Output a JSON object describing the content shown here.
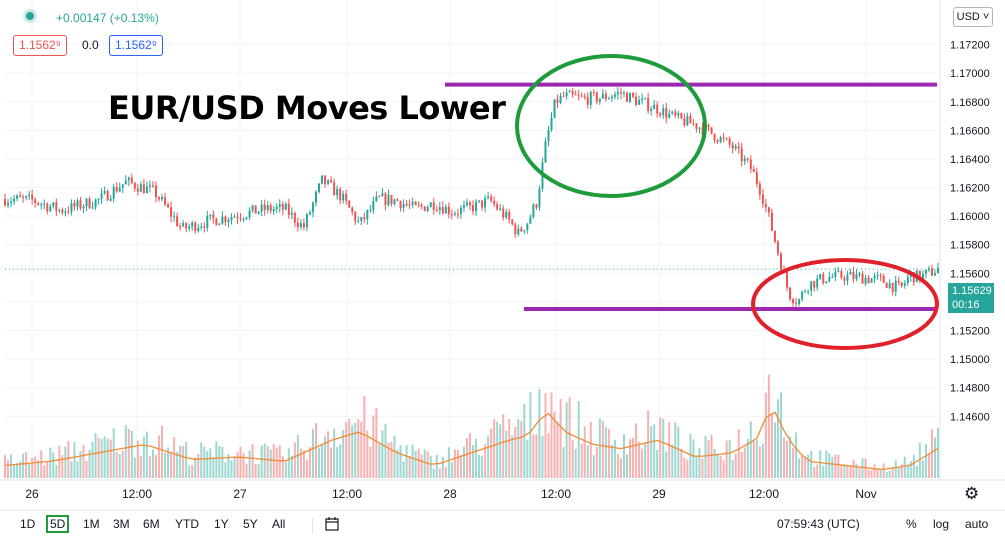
{
  "header": {
    "change": "+0.00147 (+0.13%)",
    "bid": "1.1562⁹",
    "spread": "0.0",
    "ask": "1.1562⁹"
  },
  "currency_button": "USD ˅",
  "annotation": "EUR/USD Moves Lower",
  "price_tag": {
    "price": "1.15629",
    "countdown": "00:16"
  },
  "bottom_bar": {
    "timeframes": [
      "1D",
      "5D",
      "1M",
      "3M",
      "6M",
      "YTD",
      "1Y",
      "5Y",
      "All"
    ],
    "active_timeframe": "5D",
    "clock": "07:59:43 (UTC)",
    "percent": "%",
    "log": "log",
    "auto": "auto",
    "settings_icon": "gear-icon",
    "compare_icon": "calendar-range-icon"
  },
  "colors": {
    "up": "#26a69a",
    "down": "#ef5350",
    "volume_ma": "#f28c36",
    "resistance_line": "#9c27b0",
    "green_circle": "#1e9c3c",
    "red_circle": "#e0202a"
  },
  "chart_data": {
    "type": "candlestick",
    "instrument": "EUR/USD",
    "ylim": [
      1.1435,
      1.174
    ],
    "y_ticks": [
      1.172,
      1.17,
      1.168,
      1.166,
      1.164,
      1.162,
      1.16,
      1.158,
      1.156,
      1.154,
      1.152,
      1.15,
      1.148,
      1.146
    ],
    "x_ticks": [
      "26",
      "12:00",
      "27",
      "12:00",
      "28",
      "12:00",
      "29",
      "12:00",
      "Nov"
    ],
    "current_price": 1.15629,
    "price_path": [
      [
        0,
        1.1612
      ],
      [
        3,
        1.1611
      ],
      [
        6,
        1.1604
      ],
      [
        10,
        1.1611
      ],
      [
        13,
        1.1624
      ],
      [
        16,
        1.1617
      ],
      [
        19,
        1.1591
      ],
      [
        22,
        1.1597
      ],
      [
        25,
        1.1601
      ],
      [
        28,
        1.1605
      ],
      [
        30,
        1.1605
      ],
      [
        32,
        1.1592
      ],
      [
        34,
        1.1625
      ],
      [
        36,
        1.1614
      ],
      [
        38,
        1.1594
      ],
      [
        40,
        1.1612
      ],
      [
        42,
        1.1611
      ],
      [
        44,
        1.1605
      ],
      [
        46,
        1.1609
      ],
      [
        48,
        1.1603
      ],
      [
        50,
        1.1606
      ],
      [
        52,
        1.1611
      ],
      [
        54,
        1.1597
      ],
      [
        55,
        1.1588
      ],
      [
        56,
        1.1596
      ],
      [
        57,
        1.161
      ],
      [
        58,
        1.1652
      ],
      [
        59,
        1.168
      ],
      [
        60,
        1.1684
      ],
      [
        62,
        1.1682
      ],
      [
        64,
        1.1683
      ],
      [
        66,
        1.1686
      ],
      [
        68,
        1.168
      ],
      [
        70,
        1.1675
      ],
      [
        72,
        1.1668
      ],
      [
        74,
        1.1664
      ],
      [
        76,
        1.1657
      ],
      [
        78,
        1.1648
      ],
      [
        80,
        1.1633
      ],
      [
        81,
        1.1618
      ],
      [
        82,
        1.1596
      ],
      [
        83,
        1.1571
      ],
      [
        84,
        1.1546
      ],
      [
        85,
        1.154
      ],
      [
        86,
        1.1552
      ],
      [
        88,
        1.1557
      ],
      [
        90,
        1.1558
      ],
      [
        92,
        1.1557
      ],
      [
        94,
        1.1555
      ],
      [
        96,
        1.1549
      ],
      [
        97,
        1.1559
      ],
      [
        98,
        1.1557
      ],
      [
        100,
        1.1563
      ]
    ],
    "volume_profile": [
      [
        0,
        0.15
      ],
      [
        5,
        0.2
      ],
      [
        10,
        0.3
      ],
      [
        15,
        0.4
      ],
      [
        20,
        0.22
      ],
      [
        25,
        0.25
      ],
      [
        30,
        0.2
      ],
      [
        35,
        0.45
      ],
      [
        38,
        0.55
      ],
      [
        42,
        0.3
      ],
      [
        46,
        0.15
      ],
      [
        50,
        0.3
      ],
      [
        54,
        0.45
      ],
      [
        56,
        0.5
      ],
      [
        58,
        0.8
      ],
      [
        60,
        0.55
      ],
      [
        63,
        0.4
      ],
      [
        66,
        0.35
      ],
      [
        70,
        0.45
      ],
      [
        74,
        0.25
      ],
      [
        78,
        0.3
      ],
      [
        81,
        0.5
      ],
      [
        82,
        0.9
      ],
      [
        84,
        0.45
      ],
      [
        86,
        0.2
      ],
      [
        90,
        0.15
      ],
      [
        94,
        0.1
      ],
      [
        97,
        0.15
      ],
      [
        100,
        0.35
      ]
    ],
    "annotations": {
      "resistance_level": 1.1692,
      "support_level": 1.1535
    }
  }
}
